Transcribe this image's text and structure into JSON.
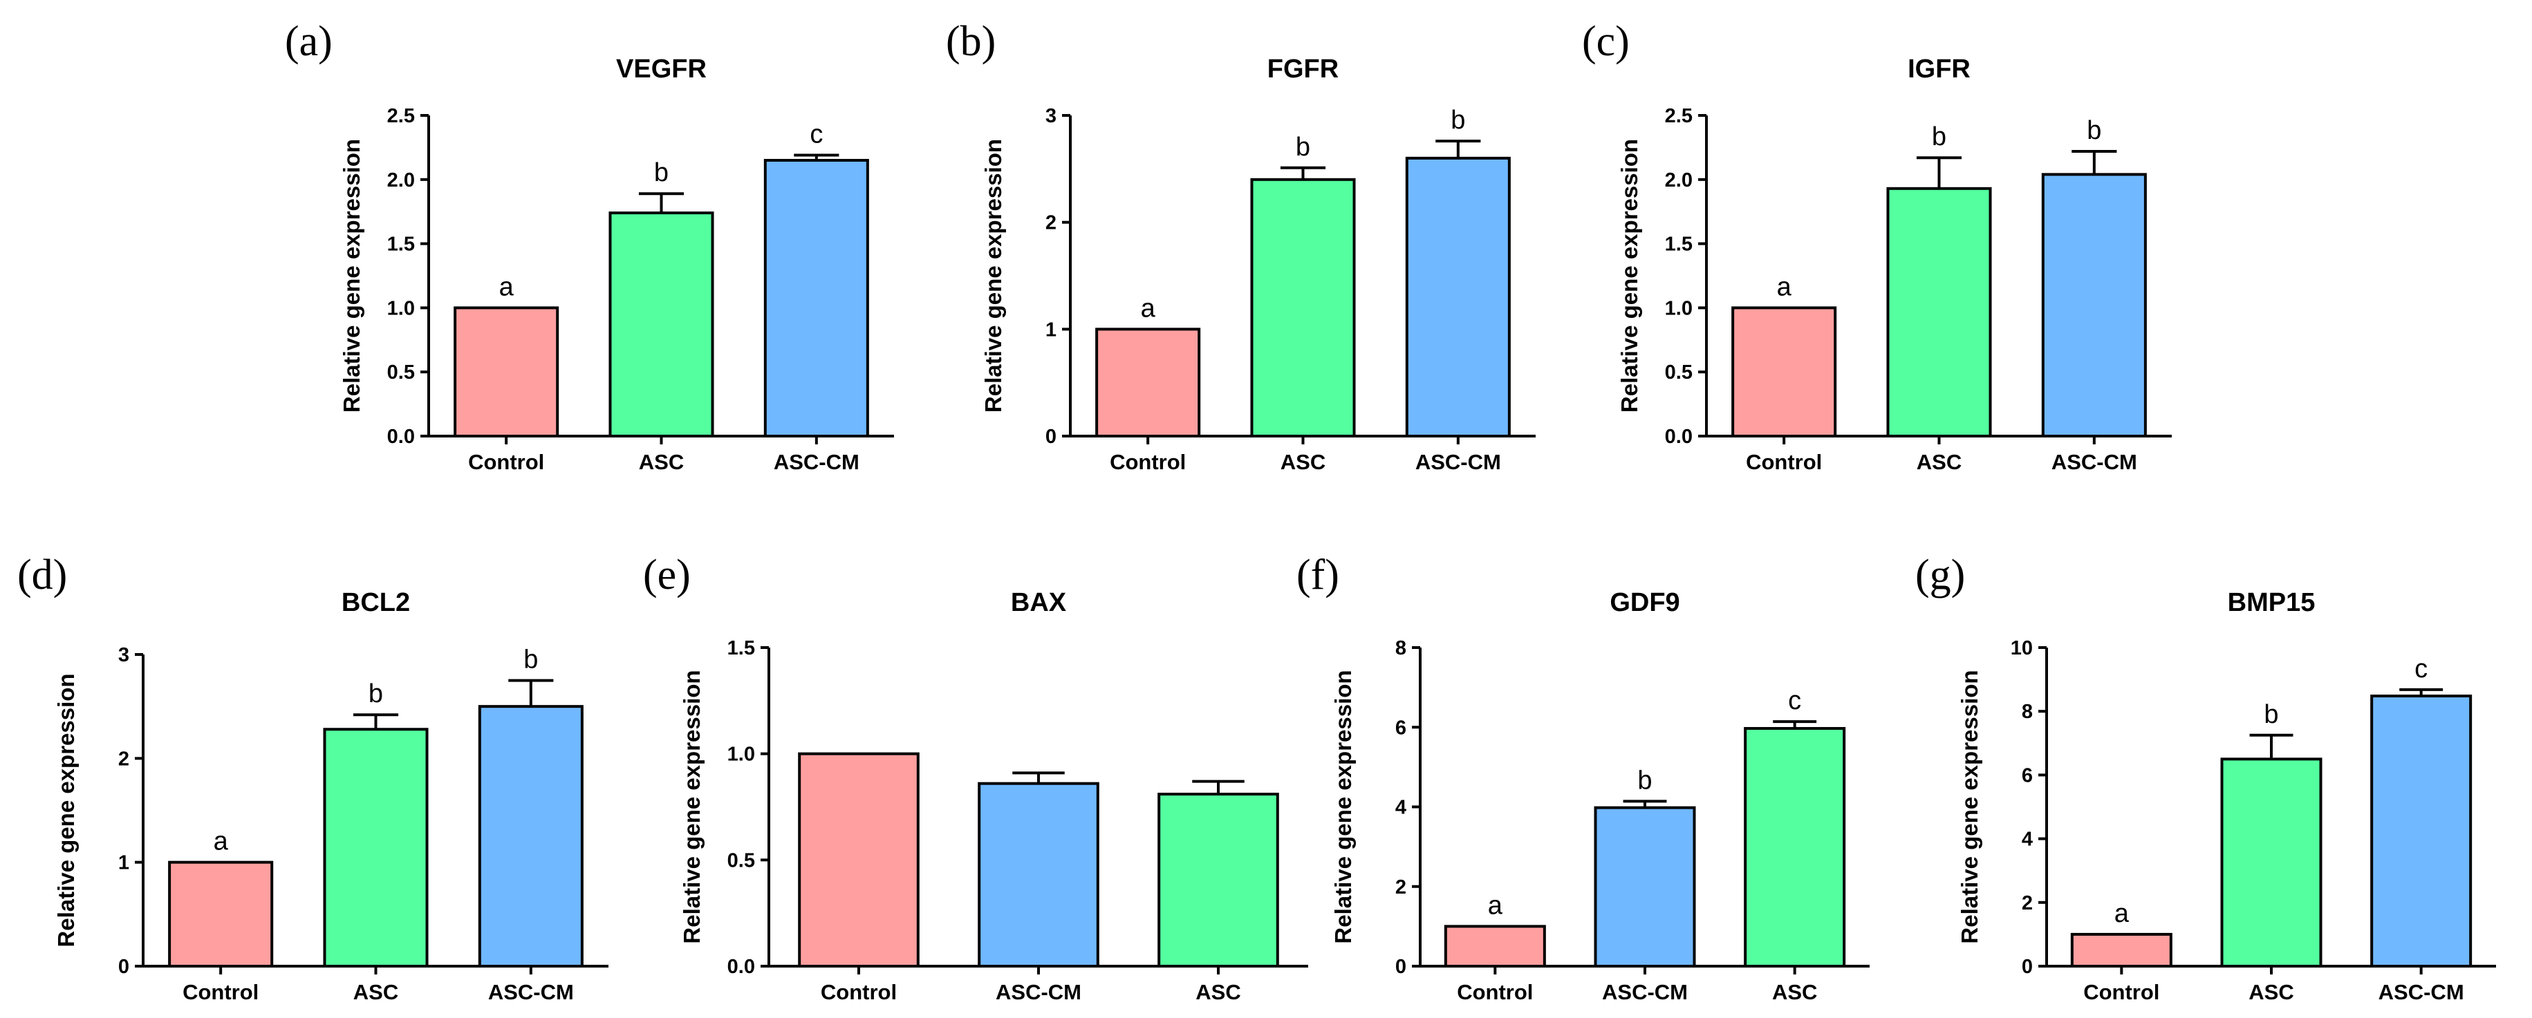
{
  "colors": {
    "Control": "#ff9f9f",
    "ASC": "#54ff9f",
    "ASC-CM": "#70b8ff",
    "axis": "#000000"
  },
  "chart_data": [
    {
      "panel": "(a)",
      "type": "bar",
      "title": "VEGFR",
      "ylabel": "Relative gene expression",
      "categories": [
        "Control",
        "ASC",
        "ASC-CM"
      ],
      "values": [
        1.0,
        1.74,
        2.15
      ],
      "errors": [
        0,
        0.15,
        0.04
      ],
      "significance": [
        "a",
        "b",
        "c"
      ],
      "ylim": [
        0,
        2.5
      ],
      "yticks": [
        "0.0",
        "0.5",
        "1.0",
        "1.5",
        "2.0",
        "2.5"
      ],
      "ytick_values": [
        0,
        0.5,
        1.0,
        1.5,
        2.0,
        2.5
      ]
    },
    {
      "panel": "(b)",
      "type": "bar",
      "title": "FGFR",
      "ylabel": "Relative gene expression",
      "categories": [
        "Control",
        "ASC",
        "ASC-CM"
      ],
      "values": [
        1.0,
        2.4,
        2.6
      ],
      "errors": [
        0,
        0.11,
        0.16
      ],
      "significance": [
        "a",
        "b",
        "b"
      ],
      "ylim": [
        0,
        3
      ],
      "yticks": [
        "0",
        "1",
        "2",
        "3"
      ],
      "ytick_values": [
        0,
        1,
        2,
        3
      ]
    },
    {
      "panel": "(c)",
      "type": "bar",
      "title": "IGFR",
      "ylabel": "Relative gene expression",
      "categories": [
        "Control",
        "ASC",
        "ASC-CM"
      ],
      "values": [
        1.0,
        1.93,
        2.04
      ],
      "errors": [
        0,
        0.24,
        0.18
      ],
      "significance": [
        "a",
        "b",
        "b"
      ],
      "ylim": [
        0,
        2.5
      ],
      "yticks": [
        "0.0",
        "0.5",
        "1.0",
        "1.5",
        "2.0",
        "2.5"
      ],
      "ytick_values": [
        0,
        0.5,
        1.0,
        1.5,
        2.0,
        2.5
      ]
    },
    {
      "panel": "(d)",
      "type": "bar",
      "title": "BCL2",
      "ylabel": "Relative gene expression",
      "categories": [
        "Control",
        "ASC",
        "ASC-CM"
      ],
      "values": [
        1.0,
        2.28,
        2.5
      ],
      "errors": [
        0,
        0.14,
        0.25
      ],
      "significance": [
        "a",
        "b",
        "b"
      ],
      "ylim": [
        0,
        3
      ],
      "yticks": [
        "0",
        "1",
        "2",
        "3"
      ],
      "ytick_values": [
        0,
        1,
        2,
        3
      ]
    },
    {
      "panel": "(e)",
      "type": "bar",
      "title": "BAX",
      "ylabel": "Relative gene expression",
      "categories": [
        "Control",
        "ASC-CM",
        "ASC"
      ],
      "values": [
        1.0,
        0.86,
        0.81
      ],
      "errors": [
        0,
        0.05,
        0.06
      ],
      "significance": [
        "",
        "",
        ""
      ],
      "ylim": [
        0,
        1.5
      ],
      "yticks": [
        "0.0",
        "0.5",
        "1.0",
        "1.5"
      ],
      "ytick_values": [
        0,
        0.5,
        1.0,
        1.5
      ]
    },
    {
      "panel": "(f)",
      "type": "bar",
      "title": "GDF9",
      "ylabel": "Relative gene expression",
      "categories": [
        "Control",
        "ASC-CM",
        "ASC"
      ],
      "values": [
        1.0,
        3.98,
        5.97
      ],
      "errors": [
        0,
        0.16,
        0.17
      ],
      "significance": [
        "a",
        "b",
        "c"
      ],
      "ylim": [
        0,
        8
      ],
      "yticks": [
        "0",
        "2",
        "4",
        "6",
        "8"
      ],
      "ytick_values": [
        0,
        2,
        4,
        6,
        8
      ]
    },
    {
      "panel": "(g)",
      "type": "bar",
      "title": "BMP15",
      "ylabel": "Relative gene expression",
      "categories": [
        "Control",
        "ASC",
        "ASC-CM"
      ],
      "values": [
        1.0,
        6.5,
        8.48
      ],
      "errors": [
        0,
        0.75,
        0.2
      ],
      "significance": [
        "a",
        "b",
        "c"
      ],
      "ylim": [
        0,
        10
      ],
      "yticks": [
        "0",
        "2",
        "4",
        "6",
        "8",
        "10"
      ],
      "ytick_values": [
        0,
        2,
        4,
        6,
        8,
        10
      ]
    }
  ]
}
